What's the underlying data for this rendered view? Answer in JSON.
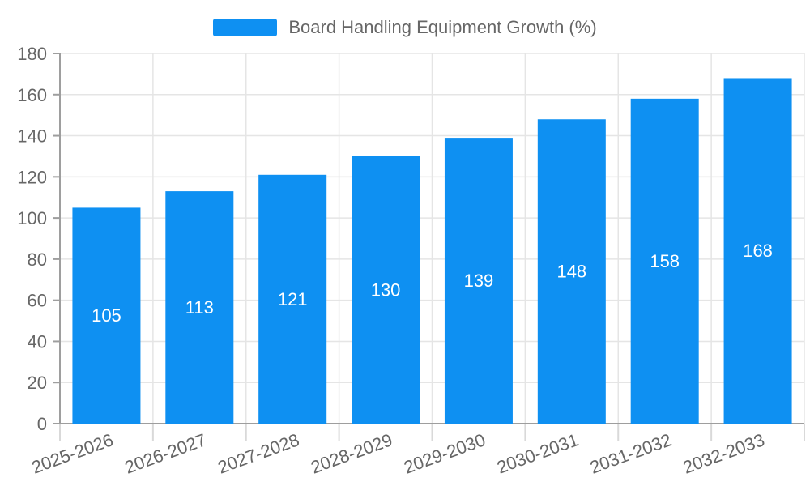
{
  "legend": {
    "label": "Board Handling Equipment Growth (%)"
  },
  "chart_data": {
    "type": "bar",
    "title": "Board Handling Equipment Growth (%)",
    "categories": [
      "2025-2026",
      "2026-2027",
      "2027-2028",
      "2028-2029",
      "2029-2030",
      "2030-2031",
      "2031-2032",
      "2032-2033"
    ],
    "values": [
      105,
      113,
      121,
      130,
      139,
      148,
      158,
      168
    ],
    "xlabel": "",
    "ylabel": "",
    "ylim": [
      0,
      180
    ],
    "ytick_step": 20,
    "yticks": [
      0,
      20,
      40,
      60,
      80,
      100,
      120,
      140,
      160,
      180
    ],
    "grid": true,
    "grid_vertical_at_category_boundaries": true,
    "legend_position": "top-center",
    "value_labels": "inside-center",
    "x_label_rotation_deg": -20
  },
  "colors": {
    "bar": "#0e90f2",
    "value_label": "#ffffff",
    "grid": "#e5e5e5",
    "axis": "#9e9e9e",
    "x_tick": "#d9d9d9",
    "tick_label": "#666666",
    "legend_text": "#666666",
    "background": "#ffffff"
  }
}
